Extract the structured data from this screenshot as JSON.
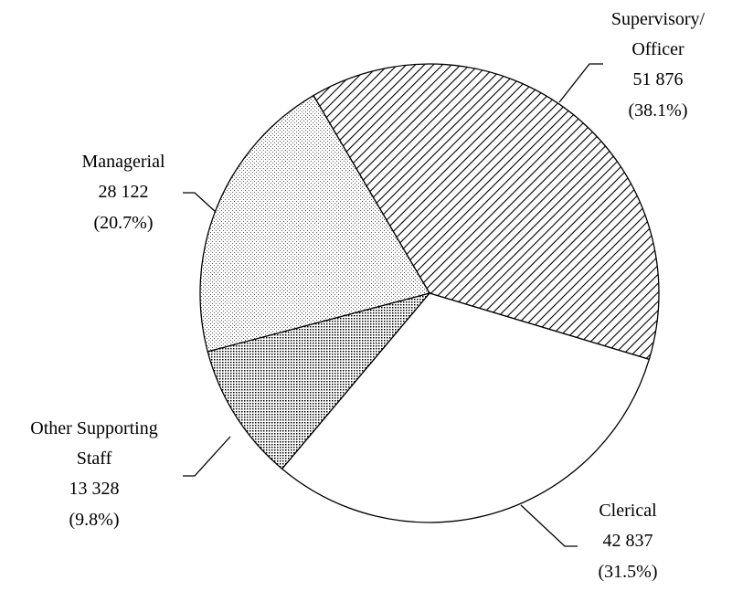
{
  "chart_data": {
    "type": "pie",
    "categories": [
      "Supervisory/\nOfficer",
      "Clerical",
      "Other Supporting\nStaff",
      "Managerial"
    ],
    "values": [
      51876,
      42837,
      13328,
      28122
    ],
    "value_labels": [
      "51 876",
      "42 837",
      "13 328",
      "28 122"
    ],
    "percents": [
      38.1,
      31.5,
      9.8,
      20.7
    ],
    "percent_labels": [
      "(38.1%)",
      "(31.5%)",
      "(9.8%)",
      "(20.7%)"
    ],
    "patterns": [
      "hatch",
      "none",
      "dense-dots",
      "light-dots"
    ]
  }
}
